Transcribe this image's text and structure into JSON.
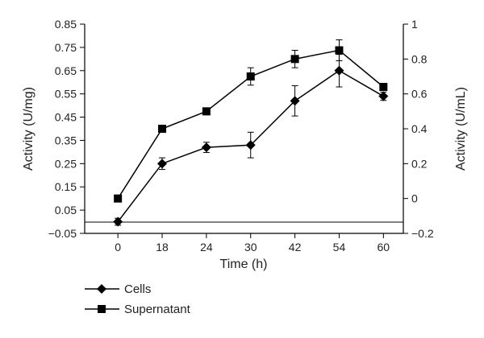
{
  "chart_data": {
    "type": "line",
    "x": [
      "0",
      "18",
      "24",
      "30",
      "42",
      "54",
      "60"
    ],
    "xlabel": "Time (h)",
    "ylabel_left": "Activity (U/mg)",
    "ylabel_right": "Activity (U/mL)",
    "ylim_left": [
      -0.05,
      0.85
    ],
    "ylim_right": [
      -0.2,
      1.0
    ],
    "yticks_left": [
      "−0.05",
      "0.05",
      "0.15",
      "0.25",
      "0.35",
      "0.45",
      "0.55",
      "0.65",
      "0.75",
      "0.85"
    ],
    "yticks_right": [
      "−0.2",
      "0",
      "0.2",
      "0.4",
      "0.6",
      "0.8",
      "1"
    ],
    "grid": false,
    "legend_position": "bottom-left",
    "series": [
      {
        "name": "Cells",
        "axis": "left",
        "marker": "diamond",
        "values": [
          0.0,
          0.25,
          0.32,
          0.33,
          0.52,
          0.65,
          0.54
        ],
        "errors": [
          0.015,
          0.025,
          0.022,
          0.055,
          0.065,
          0.07,
          0.018
        ]
      },
      {
        "name": "Supernatant",
        "axis": "right",
        "marker": "square",
        "values": [
          0.0,
          0.4,
          0.5,
          0.7,
          0.8,
          0.85,
          0.64
        ],
        "errors": [
          0.0,
          0.02,
          0.02,
          0.05,
          0.05,
          0.06,
          0.02
        ]
      }
    ],
    "colors": {
      "line": "#000000",
      "text": "#222222"
    }
  }
}
